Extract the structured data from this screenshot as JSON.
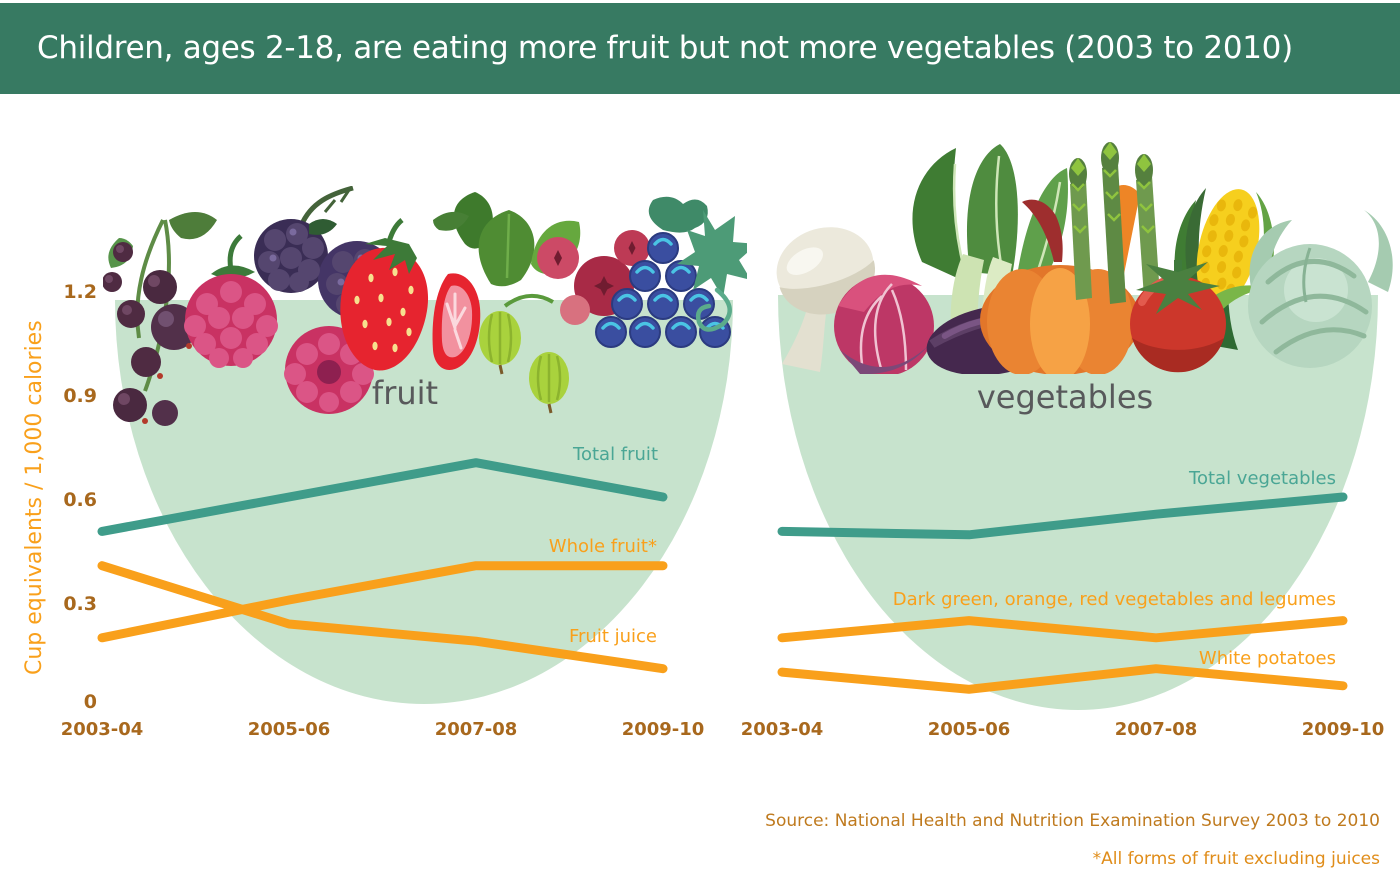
{
  "header": {
    "title": "Children, ages 2-18, are eating more fruit but not more vegetables (2003 to 2010)"
  },
  "y_axis": {
    "title": "Cup equivalents / 1,000 calories",
    "ticks": [
      "1.2",
      "0.9",
      "0.6",
      "0.3",
      "0"
    ]
  },
  "chart_data": [
    {
      "type": "line",
      "title": "fruit",
      "categories": [
        "2003-04",
        "2005-06",
        "2007-08",
        "2009-10"
      ],
      "ylabel": "Cup equivalents / 1,000 calories",
      "ylim": [
        0,
        1.2
      ],
      "grid": false,
      "series": [
        {
          "name": "Total fruit",
          "color": "#3f9c8a",
          "label_color": "#4aa695",
          "values": [
            0.5,
            0.6,
            0.7,
            0.6
          ]
        },
        {
          "name": "Whole fruit*",
          "color": "#f9a01b",
          "label_color": "#f9a01b",
          "values": [
            0.19,
            0.3,
            0.4,
            0.4
          ]
        },
        {
          "name": "Fruit juice",
          "color": "#f9a01b",
          "label_color": "#f9a01b",
          "values": [
            0.4,
            0.23,
            0.18,
            0.1
          ]
        }
      ],
      "icons": [
        "blackcurrant",
        "raspberry",
        "blackberry",
        "strawberry",
        "strawberry-slice",
        "gooseberry",
        "cranberry",
        "grapes",
        "vine-leaf"
      ]
    },
    {
      "type": "line",
      "title": "vegetables",
      "categories": [
        "2003-04",
        "2005-06",
        "2007-08",
        "2009-10"
      ],
      "ylabel": "Cup equivalents / 1,000 calories",
      "ylim": [
        0,
        1.2
      ],
      "grid": false,
      "series": [
        {
          "name": "Total vegetables",
          "color": "#3f9c8a",
          "label_color": "#4aa695",
          "values": [
            0.5,
            0.49,
            0.55,
            0.6
          ]
        },
        {
          "name": "Dark green, orange, red vegetables and legumes",
          "color": "#f9a01b",
          "label_color": "#f9a01b",
          "values": [
            0.19,
            0.24,
            0.19,
            0.24
          ]
        },
        {
          "name": "White potatoes",
          "color": "#f9a01b",
          "label_color": "#f9a01b",
          "values": [
            0.09,
            0.04,
            0.1,
            0.05
          ]
        }
      ],
      "icons": [
        "mushroom",
        "radicchio",
        "bok-choy",
        "eggplant",
        "pumpkin",
        "carrot",
        "asparagus",
        "corn",
        "tomato",
        "cabbage"
      ]
    }
  ],
  "footer": {
    "source": "Source: National Health and Nutrition Examination Survey 2003 to 2010",
    "footnote": "*All forms of fruit excluding juices"
  },
  "colors": {
    "header_bg": "#377a62",
    "bowl": "#c7e3cd",
    "teal_line": "#3f9c8a",
    "teal_label": "#4aa695",
    "orange": "#f9a01b",
    "tick_text": "#a8681d",
    "section_label": "#58595b",
    "source_text": "#bf7a1e",
    "footnote_text": "#e08d1a"
  }
}
